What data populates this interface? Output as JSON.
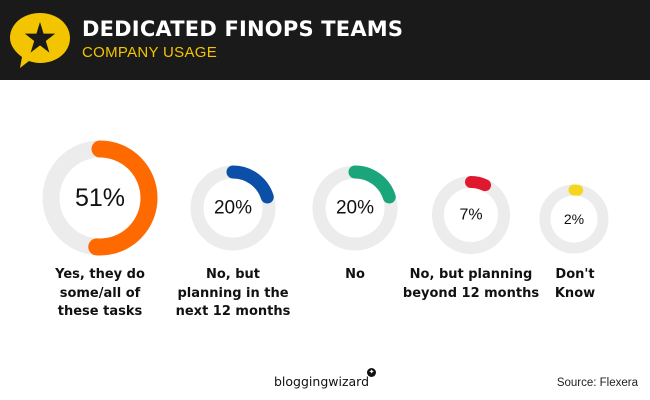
{
  "header": {
    "title": "DEDICATED FINOPS TEAMS",
    "subtitle": "COMPANY USAGE",
    "background": "#1a1a1a",
    "accent": "#f3c400",
    "logo_icon": "star-speech-bubble-icon"
  },
  "chart_data": {
    "type": "pie",
    "title": "DEDICATED FINOPS TEAMS",
    "subtitle": "COMPANY USAGE",
    "categories": [
      "Yes, they do some/all of these tasks",
      "No, but planning in the next 12 months",
      "No",
      "No, but planning beyond 12 months",
      "Don't Know"
    ],
    "values": [
      51,
      20,
      20,
      7,
      2
    ],
    "value_labels": [
      "51%",
      "20%",
      "20%",
      "7%",
      "2%"
    ],
    "colors": [
      "#ff6a00",
      "#0b4fa8",
      "#1aa57a",
      "#e0182d",
      "#f7d51d"
    ],
    "track_color": "#ececec",
    "style": "separate donut gauges per category"
  },
  "labels": [
    [
      "Yes, they do",
      "some/all of",
      "these tasks"
    ],
    [
      "No, but",
      "planning in the",
      "next 12 months"
    ],
    [
      "No"
    ],
    [
      "No, but planning",
      "beyond 12 months"
    ],
    [
      "Don't",
      "Know"
    ]
  ],
  "footer": {
    "brand": "bloggingwizard",
    "source": "Source: Flexera"
  }
}
